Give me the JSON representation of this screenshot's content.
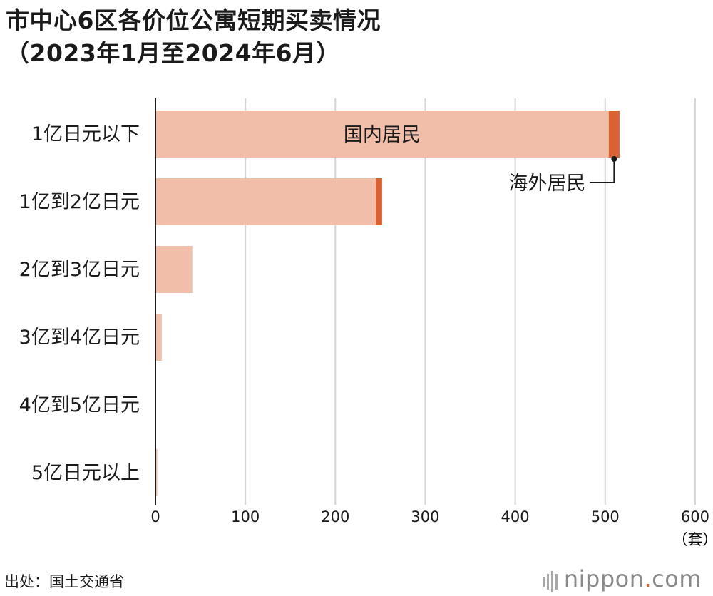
{
  "title_line1": "市中心6区各价位公寓短期买卖情况",
  "title_line2": "（2023年1月至2024年6月）",
  "source": "出处：国土交通省",
  "logo": {
    "name": "nippon",
    "dot": ".",
    "domain": "com"
  },
  "colors": {
    "domestic": "#f1beaa",
    "overseas": "#da6132",
    "grid": "#d4d4d4",
    "axis": "#1a1a1a"
  },
  "chart_data": {
    "type": "bar",
    "orientation": "horizontal",
    "stacked": true,
    "categories": [
      "1亿日元以下",
      "1亿到2亿日元",
      "2亿到3亿日元",
      "3亿到4亿日元",
      "4亿到5亿日元",
      "5亿日元以上"
    ],
    "series": [
      {
        "name": "国内居民",
        "values": [
          504,
          245,
          41,
          7,
          0,
          2
        ]
      },
      {
        "name": "海外居民",
        "values": [
          12,
          7,
          0,
          0,
          0,
          0
        ]
      }
    ],
    "xlim": [
      0,
      600
    ],
    "xticks": [
      0,
      100,
      200,
      300,
      400,
      500,
      600
    ],
    "xunit": "（套）",
    "grid": true
  }
}
